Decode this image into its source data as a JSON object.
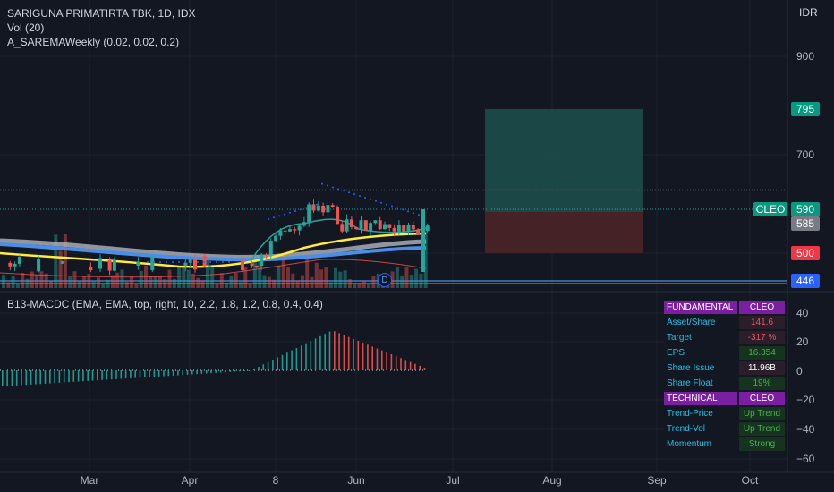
{
  "legend": {
    "symbol": "SARIGUNA PRIMATIRTA TBK, 1D, IDX",
    "volume": "Vol (20)",
    "indicator": "A_SAREMAWeekly (0.02, 0.02, 0.2)",
    "macd": "B13-MACDC (EMA, EMA, top, right, 10, 2.2, 1.8, 1.2, 0.8, 0.4, 0.4)"
  },
  "currency": "IDR",
  "price_axis": {
    "ticks": [
      "900",
      "700"
    ],
    "labels": {
      "target_high": "795",
      "last": "590",
      "cleo_tag": "CLEO",
      "ma": "585",
      "stop": "500",
      "low": "446"
    }
  },
  "macd_axis": {
    "ticks": [
      "40",
      "20",
      "0",
      "−20",
      "−40",
      "−60"
    ]
  },
  "time_axis": {
    "labels": [
      "Mar",
      "Apr",
      "8",
      "Jun",
      "Jul",
      "Aug",
      "Sep",
      "Oct"
    ]
  },
  "marker": "D",
  "fundamental": {
    "header": {
      "k": "FUNDAMENTAL",
      "v": "CLEO"
    },
    "rows": [
      {
        "k": "Asset/Share",
        "v": "141.6",
        "color": "#f7525f",
        "bg": "#2a1e2a"
      },
      {
        "k": "Target",
        "v": "-317 %",
        "color": "#f7525f",
        "bg": "#2a1e2a"
      },
      {
        "k": "EPS",
        "v": "16.354",
        "color": "#4caf50",
        "bg": "#15331f"
      },
      {
        "k": "Share Issue",
        "v": "11.96B",
        "color": "#ffffff",
        "bg": "#2a1e2a"
      },
      {
        "k": "Share Float",
        "v": "19%",
        "color": "#4caf50",
        "bg": "#15331f"
      }
    ],
    "tech_header": {
      "k": "TECHNICAL",
      "v": "CLEO"
    },
    "tech_rows": [
      {
        "k": "Trend-Price",
        "v": "Up Trend",
        "color": "#4caf50",
        "bg": "#15331f"
      },
      {
        "k": "Trend-Vol",
        "v": "Up Trend",
        "color": "#4caf50",
        "bg": "#15331f"
      },
      {
        "k": "Momentum",
        "v": "Strong",
        "color": "#4caf50",
        "bg": "#15331f"
      }
    ]
  },
  "colors": {
    "up": "#26a69a",
    "down": "#ef5350",
    "long_zone": "#1d4d4a",
    "short_zone": "#4a2326",
    "ma_yellow": "#ffeb3b",
    "ma_blue": "#4a8fe7",
    "ma_grey": "#b2b5be"
  }
}
